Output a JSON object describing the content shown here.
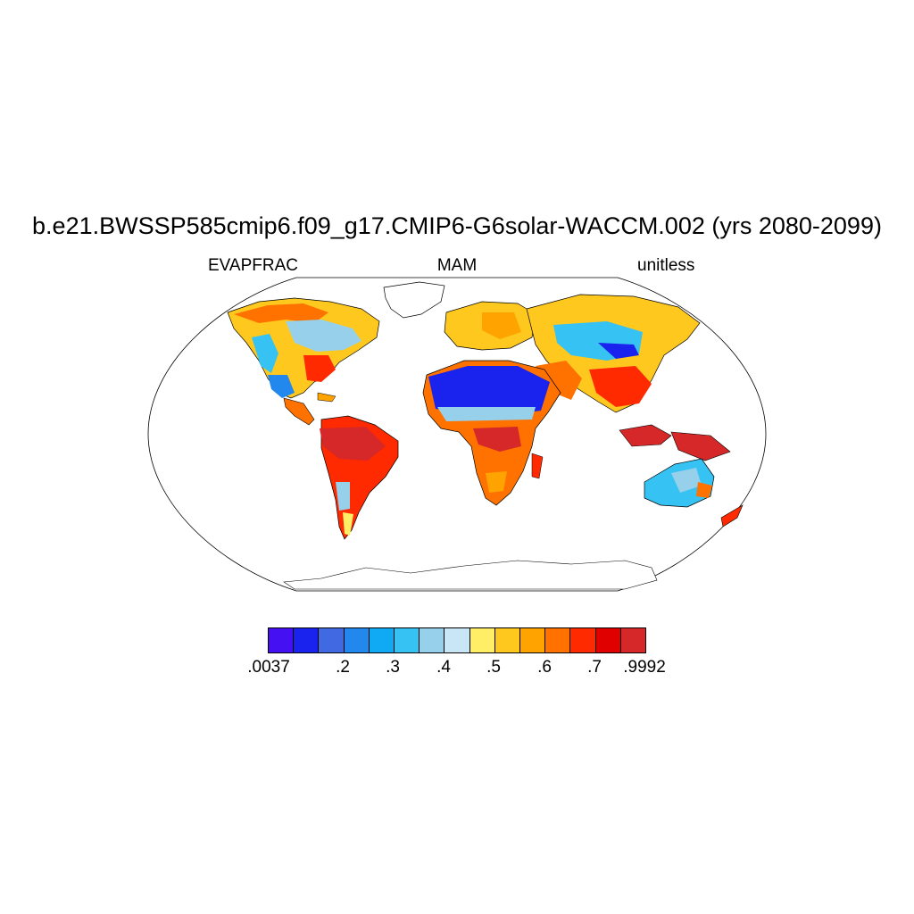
{
  "title": "b.e21.BWSSP585cmip6.f09_g17.CMIP6-G6solar-WACCM.002 (yrs 2080-2099)",
  "subtitle_left": "EVAPFRAC",
  "subtitle_center": "MAM",
  "subtitle_right": "unitless",
  "colorbar": {
    "colors": [
      "#4510f2",
      "#1a22ee",
      "#4169e1",
      "#2288ee",
      "#10aaf4",
      "#36c2f2",
      "#96d0ea",
      "#c8e6f6",
      "#ffee66",
      "#ffc81e",
      "#ffa300",
      "#ff7200",
      "#ff2a00",
      "#e00000",
      "#d62828"
    ],
    "labels": [
      ".0037",
      ".2",
      ".3",
      ".4",
      ".5",
      ".6",
      ".7",
      ".9992"
    ]
  }
}
